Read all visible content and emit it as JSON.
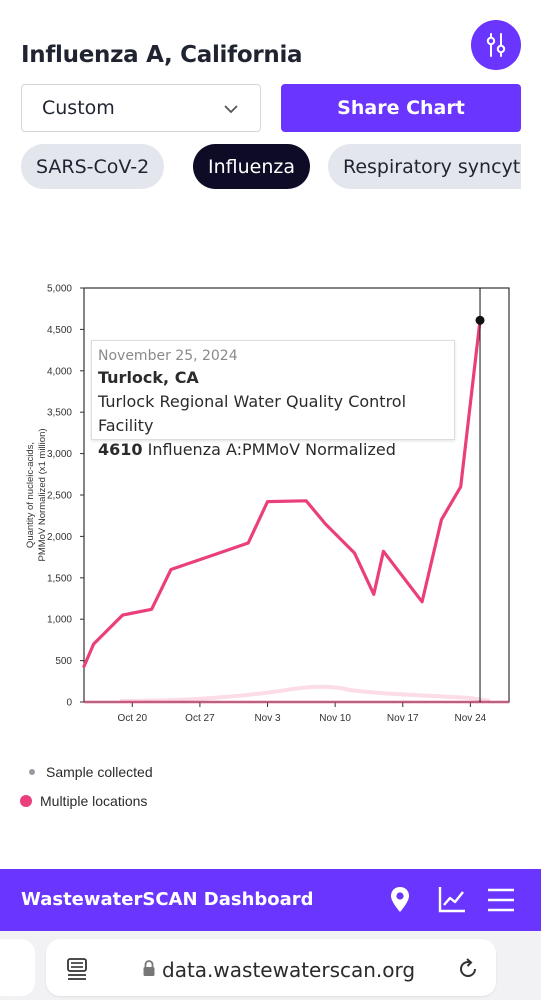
{
  "header": {
    "title": "Influenza A, California"
  },
  "controls": {
    "range_select_value": "Custom",
    "share_label": "Share Chart"
  },
  "pills": [
    {
      "label": "SARS-CoV-2",
      "active": false
    },
    {
      "label": "Influenza",
      "active": true
    },
    {
      "label": "Respiratory syncyt",
      "active": false
    }
  ],
  "chart_data": {
    "type": "line",
    "ylabel": "Quantity of nucleic-acids, PMMoV Normalized (x1 million)",
    "xlabel": "",
    "ylim": [
      0,
      5000
    ],
    "y_ticks": [
      "0",
      "500",
      "1,000",
      "1,500",
      "2,000",
      "2,500",
      "3,000",
      "3,500",
      "4,000",
      "4,500",
      "5,000"
    ],
    "x_ticks": [
      "Oct 20",
      "Oct 27",
      "Nov 3",
      "Nov 10",
      "Nov 17",
      "Nov 24"
    ],
    "series": [
      {
        "name": "Multiple locations",
        "color": "#ea3f7c",
        "points": [
          [
            "2024-10-15",
            430
          ],
          [
            "2024-10-16",
            700
          ],
          [
            "2024-10-19",
            1050
          ],
          [
            "2024-10-22",
            1120
          ],
          [
            "2024-10-24",
            1600
          ],
          [
            "2024-10-29",
            1800
          ],
          [
            "2024-11-01",
            1920
          ],
          [
            "2024-11-03",
            2420
          ],
          [
            "2024-11-07",
            2430
          ],
          [
            "2024-11-09",
            2150
          ],
          [
            "2024-11-12",
            1800
          ],
          [
            "2024-11-14",
            1300
          ],
          [
            "2024-11-15",
            1820
          ],
          [
            "2024-11-19",
            1210
          ],
          [
            "2024-11-21",
            2200
          ],
          [
            "2024-11-23",
            2600
          ],
          [
            "2024-11-25",
            4610
          ]
        ]
      }
    ],
    "tooltip": {
      "date": "November 25, 2024",
      "location": "Turlock, CA",
      "facility": "Turlock Regional Water Quality Control Facility",
      "value": "4610",
      "metric": "Influenza A:PMMoV Normalized"
    }
  },
  "legend": {
    "sample_label": "Sample collected",
    "multiple_label": "Multiple locations",
    "sample_color": "#9a9aa2",
    "multiple_color": "#ea3f7c"
  },
  "bottom_nav": {
    "title": "WastewaterSCAN Dashboard",
    "icons": [
      "location-pin-icon",
      "chart-icon",
      "menu-icon"
    ]
  },
  "browser": {
    "url": "data.wastewaterscan.org"
  },
  "colors": {
    "accent": "#6a35ff",
    "pill_active_bg": "#0d0b26",
    "pill_inactive_bg": "#e4e6ee",
    "line": "#ea3f7c"
  }
}
